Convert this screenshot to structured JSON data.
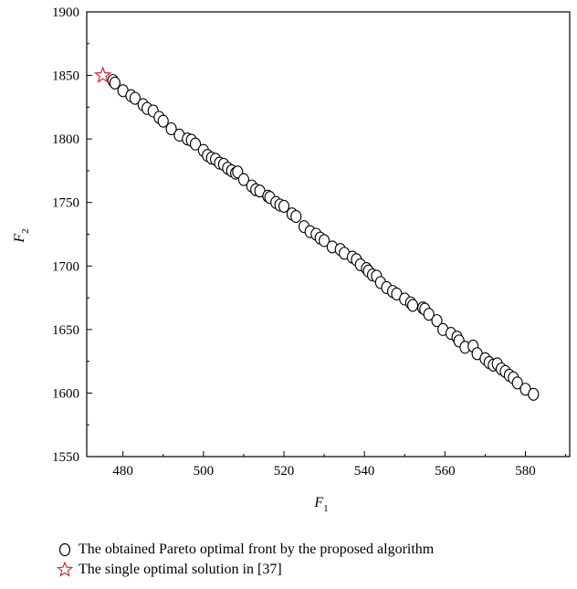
{
  "chart_data": {
    "type": "scatter",
    "title": "",
    "xlabel": "F",
    "xlabel_sub": "1",
    "ylabel": "F",
    "ylabel_sub": "2",
    "xlim": [
      471,
      591
    ],
    "ylim": [
      1550,
      1900
    ],
    "xticks": [
      "480",
      "500",
      "520",
      "540",
      "560",
      "580"
    ],
    "yticks": [
      "1550",
      "1600",
      "1650",
      "1700",
      "1750",
      "1800",
      "1850",
      "1900"
    ],
    "grid": false,
    "legend_position": "bottom-left (below plot)",
    "series": [
      {
        "name": "The obtained Pareto optimal front by the proposed algorithm",
        "marker": "circle",
        "color": "#000000",
        "x": [
          477.5,
          478,
          480,
          482,
          483,
          485,
          486,
          487.5,
          489,
          490,
          492,
          494,
          496,
          497,
          498,
          500,
          501,
          502,
          503,
          504,
          505,
          506,
          507,
          508,
          508.5,
          510,
          512,
          513,
          514,
          516,
          516.5,
          518,
          519,
          520,
          522,
          523,
          525,
          526.5,
          528,
          529,
          530,
          532,
          534,
          535,
          537,
          538,
          539,
          540.5,
          541,
          542,
          543,
          544,
          545.5,
          547,
          548,
          550,
          551.5,
          552,
          554.5,
          555,
          556,
          558,
          559.5,
          561.5,
          563,
          563.5,
          565,
          567,
          568,
          570,
          571,
          572,
          573,
          574,
          575,
          576,
          577,
          578,
          580,
          582
        ],
        "y": [
          1846,
          1844,
          1838,
          1834,
          1832,
          1827,
          1824,
          1822,
          1817,
          1814,
          1808,
          1803,
          1800,
          1799,
          1796,
          1791,
          1787,
          1785,
          1784,
          1781,
          1780,
          1777,
          1775,
          1773,
          1774,
          1768,
          1763,
          1760,
          1759,
          1755,
          1754,
          1750,
          1748,
          1747,
          1741,
          1739,
          1731,
          1727,
          1725,
          1722,
          1720,
          1715,
          1713,
          1710,
          1707,
          1705,
          1701,
          1698,
          1696,
          1693,
          1692,
          1687,
          1683,
          1680,
          1678,
          1674,
          1671,
          1669,
          1667,
          1666,
          1662,
          1657,
          1650,
          1647,
          1644,
          1641,
          1636,
          1637,
          1631,
          1627,
          1624,
          1622,
          1623,
          1619,
          1617,
          1614,
          1612,
          1608,
          1603,
          1599
        ]
      },
      {
        "name": "The single optimal solution in [37]",
        "marker": "star",
        "color": "#d42030",
        "x": [
          475
        ],
        "y": [
          1850
        ]
      }
    ]
  },
  "legend": {
    "items": [
      {
        "label": "The obtained Pareto optimal front by the proposed algorithm"
      },
      {
        "label": "The single optimal solution in [37]"
      }
    ]
  }
}
